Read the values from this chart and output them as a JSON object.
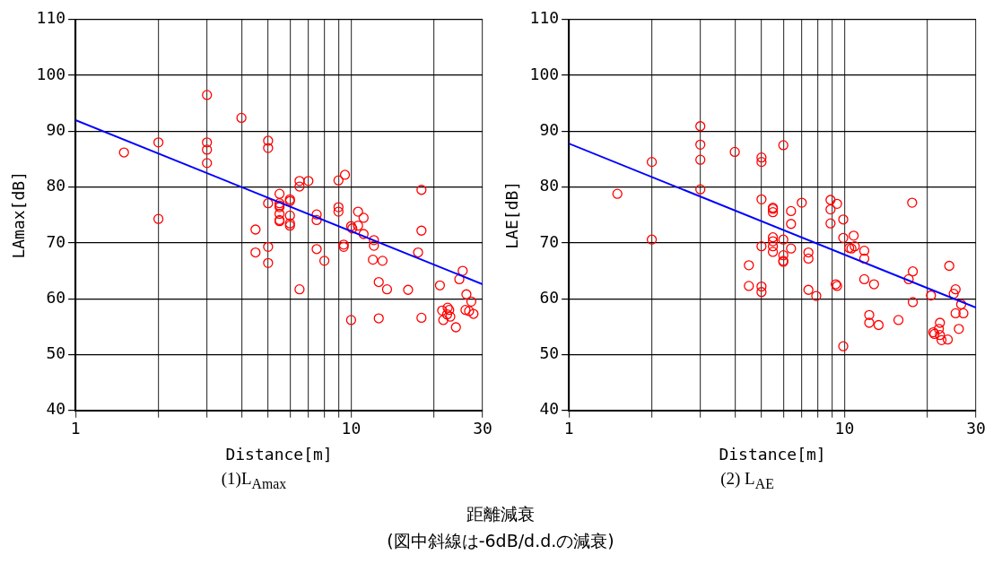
{
  "chart_data": [
    {
      "type": "scatter",
      "title": "距離減衰",
      "subtitle": "(図中斜線は-6dB/d.d.の減衰)",
      "xlabel": "Distance[m]",
      "ylabel": "LAmax[dB]",
      "annotations": [
        "(1)L$_{Amax}$"
      ],
      "log": "x",
      "grid": true,
      "legend": false,
      "marker": "circle",
      "xlim": [
        1,
        30
      ],
      "ylim": [
        40,
        110
      ],
      "xticks": [
        1,
        {
          "value": 2,
          "label": null
        },
        {
          "value": 3,
          "label": null
        },
        {
          "value": 4,
          "label": null
        },
        {
          "value": 5,
          "label": null
        },
        {
          "value": 6,
          "label": null
        },
        {
          "value": 7,
          "label": null
        },
        {
          "value": 8,
          "label": null
        },
        {
          "value": 9,
          "label": null
        },
        10,
        {
          "value": 20,
          "label": null
        },
        30
      ],
      "yticks": [
        40,
        50,
        60,
        70,
        80,
        90,
        100,
        110
      ],
      "series": [
        {
          "type": "scatter",
          "color": "#ff0000",
          "x": [
            1.5,
            2,
            2,
            3,
            3,
            3,
            3,
            4,
            5,
            5,
            5,
            5,
            5,
            4.5,
            4.5,
            5.5,
            5.5,
            5.5,
            5.5,
            6.5,
            7,
            6.5,
            9,
            9.5,
            5.5,
            6,
            6,
            5.5,
            5.5,
            9,
            9,
            7.5,
            7.5,
            6,
            6,
            6,
            10.6,
            11.1,
            10,
            10.1,
            10.6,
            11.1,
            12.1,
            12.1,
            17.5,
            18,
            18,
            7.5,
            8,
            6.5,
            9.4,
            9.4,
            12,
            13,
            12.6,
            13.5,
            16.1,
            10,
            12.6,
            18,
            21,
            25.4,
            24.7,
            26.2,
            27.3,
            26,
            26.8,
            27.8,
            21.4,
            21.6,
            22.4,
            22.7,
            22.9,
            22.3,
            24
          ],
          "values": [
            86.2,
            88,
            74.3,
            96.5,
            88,
            86.7,
            84.3,
            92.4,
            88.3,
            87,
            77.1,
            69.3,
            66.4,
            72.4,
            68.3,
            78.8,
            76.7,
            75.2,
            74.1,
            81.1,
            81.1,
            80.1,
            81.2,
            82.2,
            76.4,
            77.8,
            77.5,
            77.1,
            73.9,
            76.4,
            75.6,
            75.1,
            74.1,
            74.9,
            73.5,
            73.1,
            75.6,
            74.5,
            73,
            72.6,
            73.1,
            71.6,
            70.5,
            69.5,
            68.3,
            79.5,
            72.2,
            68.9,
            66.8,
            61.7,
            69.7,
            69.3,
            67,
            66.8,
            63,
            61.7,
            61.6,
            56.2,
            56.5,
            56.6,
            62.4,
            65,
            63.5,
            60.8,
            59.5,
            58,
            57.8,
            57.3,
            57.9,
            56.2,
            58.4,
            58,
            56.8,
            57.2,
            54.9
          ]
        },
        {
          "type": "line",
          "color": "#0000ff",
          "marker": "none",
          "x": [
            1,
            30
          ],
          "values": [
            92,
            62.6
          ]
        }
      ]
    },
    {
      "type": "scatter",
      "xlabel": "Distance[m]",
      "ylabel": "LAE[dB]",
      "annotations": [
        "(2) L$_{AE}$"
      ],
      "log": "x",
      "grid": true,
      "legend": false,
      "marker": "circle",
      "xlim": [
        1,
        30
      ],
      "ylim": [
        40,
        110
      ],
      "xticks": [
        1,
        {
          "value": 2,
          "label": null
        },
        {
          "value": 3,
          "label": null
        },
        {
          "value": 4,
          "label": null
        },
        {
          "value": 5,
          "label": null
        },
        {
          "value": 6,
          "label": null
        },
        {
          "value": 7,
          "label": null
        },
        {
          "value": 8,
          "label": null
        },
        {
          "value": 9,
          "label": null
        },
        10,
        {
          "value": 20,
          "label": null
        },
        30
      ],
      "yticks": [
        40,
        50,
        60,
        70,
        80,
        90,
        100,
        110
      ],
      "series": [
        {
          "type": "scatter",
          "color": "#ff0000",
          "x": [
            3,
            3,
            3,
            3,
            4,
            2,
            2,
            1.5,
            5,
            5,
            6,
            5,
            5.5,
            5.5,
            6.4,
            6.4,
            5.5,
            5.5,
            5.5,
            5.5,
            6,
            5,
            6,
            6,
            6,
            6.4,
            4.5,
            4.5,
            5,
            5,
            5.5,
            7,
            8.9,
            9.4,
            8.9,
            8.9,
            9.9,
            7.4,
            7.4,
            9.9,
            10.8,
            10.4,
            10.6,
            10.9,
            11.8,
            11.8,
            9.3,
            9.4,
            7.4,
            7.9,
            11.8,
            12.8,
            12.3,
            12.3,
            13.3,
            9.9,
            15.7,
            17.6,
            17.7,
            17.1,
            17.7,
            20.6,
            24,
            25.3,
            24.9,
            26.5,
            25.3,
            27,
            26,
            22.2,
            21,
            21.2,
            22,
            22.2,
            22.5,
            23.7
          ],
          "values": [
            90.9,
            87.6,
            84.9,
            79.6,
            86.3,
            84.5,
            70.6,
            78.8,
            85.3,
            84.5,
            87.5,
            77.8,
            76.3,
            75.5,
            75.7,
            73.4,
            71,
            70.3,
            69.4,
            68.4,
            70.6,
            69.4,
            67.8,
            66.8,
            66.6,
            69,
            66,
            62.3,
            62.2,
            61.2,
            76.1,
            77.2,
            77.7,
            77,
            76,
            73.5,
            74.2,
            68.3,
            67.2,
            70.9,
            71.3,
            69.1,
            69,
            69.4,
            68.6,
            67.2,
            62.6,
            62.3,
            61.6,
            60.5,
            63.5,
            62.6,
            57.1,
            55.7,
            55.3,
            51.5,
            56.2,
            77.2,
            64.9,
            63.5,
            59.4,
            60.6,
            65.9,
            61.7,
            60.9,
            59,
            57.4,
            57.4,
            54.6,
            55.7,
            54,
            53.7,
            54.6,
            53.5,
            52.6,
            52.7
          ]
        },
        {
          "type": "line",
          "color": "#0000ff",
          "marker": "none",
          "x": [
            1,
            30
          ],
          "values": [
            87.8,
            58.4
          ]
        }
      ]
    }
  ]
}
